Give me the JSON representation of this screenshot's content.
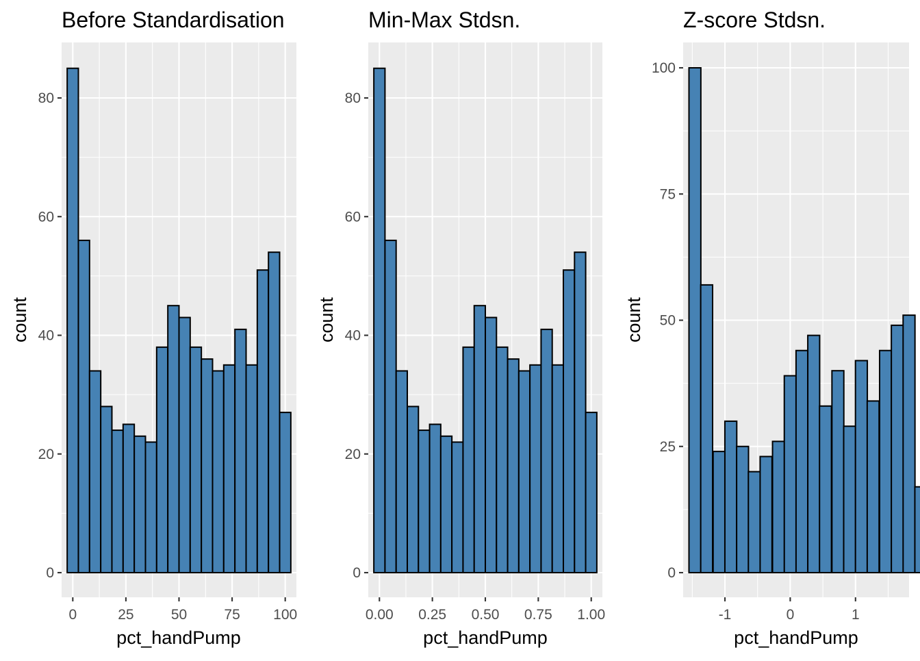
{
  "bar_fill": "#4682b4",
  "bar_outline": "#000000",
  "panel_background": "#ebebeb",
  "chart_data": [
    {
      "type": "bar",
      "title": "Before Standardisation",
      "xlabel": "pct_handPump",
      "ylabel": "count",
      "grid": true,
      "bins": 20,
      "x": [
        0,
        5.26,
        10.53,
        15.79,
        21.05,
        26.32,
        31.58,
        36.84,
        42.11,
        47.37,
        52.63,
        57.89,
        63.16,
        68.42,
        73.68,
        78.95,
        84.21,
        89.47,
        94.74,
        100
      ],
      "values": [
        85,
        56,
        34,
        28,
        24,
        25,
        23,
        22,
        38,
        45,
        43,
        38,
        36,
        34,
        35,
        41,
        35,
        51,
        54,
        27
      ],
      "xlim": [
        -5.26,
        105.26
      ],
      "ylim": [
        0,
        85
      ],
      "xticks": [
        0,
        25,
        50,
        75,
        100
      ],
      "xtick_labels": [
        "0",
        "25",
        "50",
        "75",
        "100"
      ],
      "yticks": [
        0,
        20,
        40,
        60,
        80
      ],
      "ytick_labels": [
        "0",
        "20",
        "40",
        "60",
        "80"
      ]
    },
    {
      "type": "bar",
      "title": "Min-Max Stdsn.",
      "xlabel": "pct_handPump",
      "ylabel": "count",
      "grid": true,
      "bins": 20,
      "x": [
        0,
        0.0526,
        0.1053,
        0.1579,
        0.2105,
        0.2632,
        0.3158,
        0.3684,
        0.4211,
        0.4737,
        0.5263,
        0.5789,
        0.6316,
        0.6842,
        0.7368,
        0.7895,
        0.8421,
        0.8947,
        0.9474,
        1.0
      ],
      "values": [
        85,
        56,
        34,
        28,
        24,
        25,
        23,
        22,
        38,
        45,
        43,
        38,
        36,
        34,
        35,
        41,
        35,
        51,
        54,
        27
      ],
      "xlim": [
        -0.0526,
        1.0526
      ],
      "ylim": [
        0,
        85
      ],
      "xticks": [
        0,
        0.25,
        0.5,
        0.75,
        1.0
      ],
      "xtick_labels": [
        "0.00",
        "0.25",
        "0.50",
        "0.75",
        "1.00"
      ],
      "yticks": [
        0,
        20,
        40,
        60,
        80
      ],
      "ytick_labels": [
        "0",
        "20",
        "40",
        "60",
        "80"
      ]
    },
    {
      "type": "bar",
      "title": "Z-score Stdsn.",
      "xlabel": "pct_handPump",
      "ylabel": "count",
      "grid": true,
      "bins": 20,
      "x": [
        -1.46,
        -1.28,
        -1.09,
        -0.91,
        -0.73,
        -0.55,
        -0.37,
        -0.18,
        0.0,
        0.18,
        0.36,
        0.54,
        0.73,
        0.91,
        1.09,
        1.27,
        1.46,
        1.64,
        1.82,
        2.0
      ],
      "values": [
        100,
        57,
        24,
        30,
        25,
        20,
        23,
        26,
        39,
        44,
        47,
        33,
        40,
        29,
        42,
        34,
        44,
        49,
        51,
        17
      ],
      "xlim": [
        -1.64,
        1.82
      ],
      "ylim": [
        0,
        100
      ],
      "xticks": [
        -1,
        0,
        1
      ],
      "xtick_labels": [
        "-1",
        "0",
        "1"
      ],
      "yticks": [
        0,
        25,
        50,
        75,
        100
      ],
      "ytick_labels": [
        "0",
        "25",
        "50",
        "75",
        "100"
      ]
    }
  ]
}
